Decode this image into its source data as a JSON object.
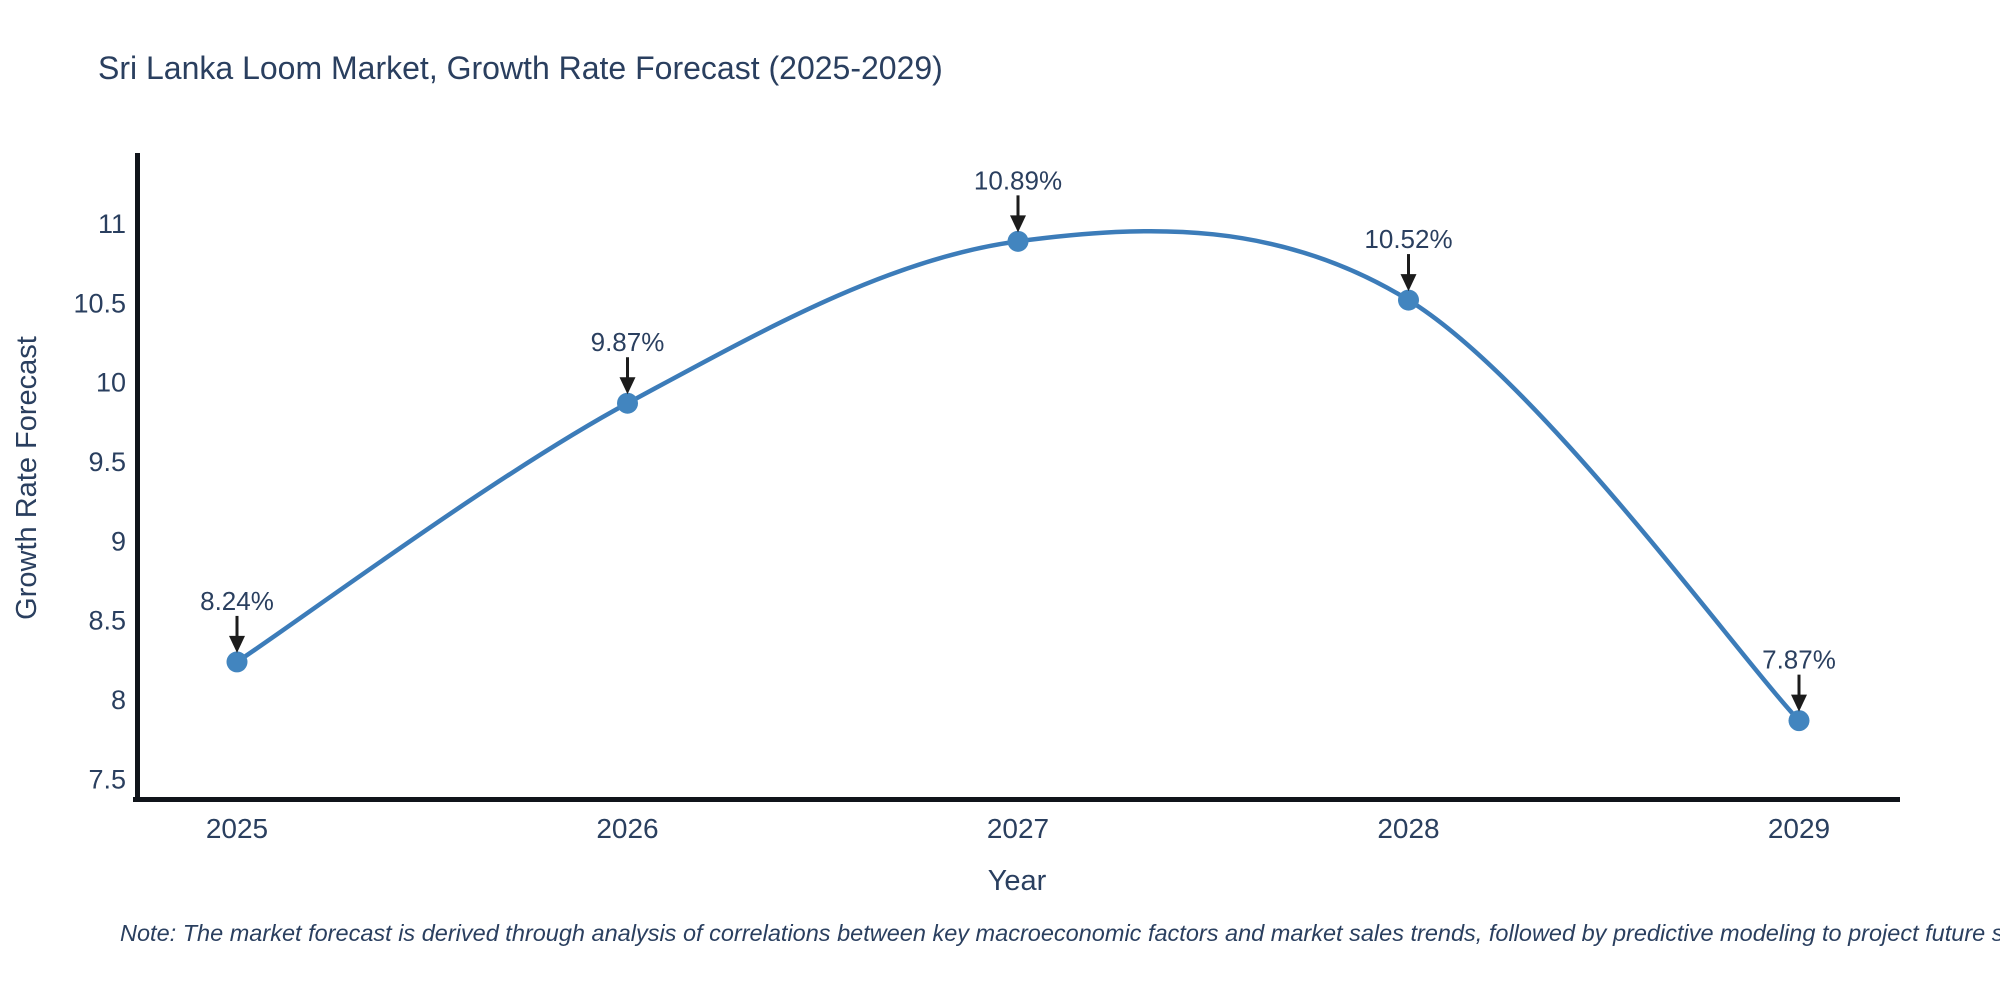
{
  "title": "Sri Lanka Loom Market, Growth Rate Forecast (2025-2029)",
  "note": "Note: The market forecast is derived through analysis of correlations between key macroeconomic factors and market sales trends, followed by predictive modeling to project future sal",
  "chart_data": {
    "type": "line",
    "line_shape": "spline",
    "categories": [
      "2025",
      "2026",
      "2027",
      "2028",
      "2029"
    ],
    "x": [
      2025,
      2026,
      2027,
      2028,
      2029
    ],
    "values": [
      8.24,
      9.87,
      10.89,
      10.52,
      7.87
    ],
    "point_labels": [
      "8.24%",
      "9.87%",
      "10.89%",
      "10.52%",
      "7.87%"
    ],
    "title": "Sri Lanka Loom Market, Growth Rate Forecast (2025-2029)",
    "xlabel": "Year",
    "ylabel": "Growth Rate Forecast",
    "y_ticks": [
      7.5,
      8,
      8.5,
      9,
      9.5,
      10,
      10.5,
      11
    ],
    "y_tick_labels": [
      "7.5",
      "8",
      "8.5",
      "9",
      "9.5",
      "10",
      "10.5",
      "11"
    ],
    "ylim": [
      7.37,
      11.45
    ],
    "grid": false,
    "legend_position": "none",
    "colors": {
      "line": "#3c7cb9",
      "marker": "#4285bf",
      "axis": "#10141a",
      "text": "#2a3f5f",
      "arrow": "#1c1c1c",
      "background": "#ffffff"
    }
  }
}
